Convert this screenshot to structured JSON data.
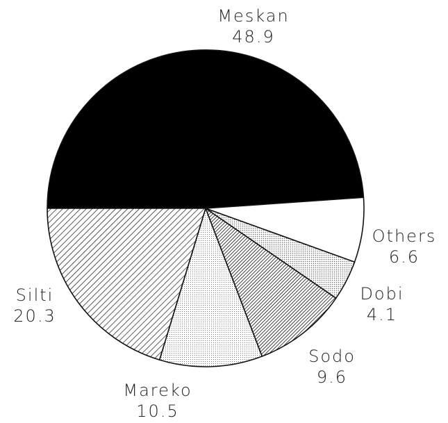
{
  "chart_data": {
    "type": "pie",
    "title": "",
    "slices": [
      {
        "label": "Meskan",
        "value": 48.9,
        "value_text": "48.9",
        "fill": "solid-black"
      },
      {
        "label": "Others",
        "value": 6.6,
        "value_text": "6.6",
        "fill": "white"
      },
      {
        "label": "Dobi",
        "value": 4.1,
        "value_text": "4.1",
        "fill": "light-dotted"
      },
      {
        "label": "Sodo",
        "value": 9.6,
        "value_text": "9.6",
        "fill": "dense-diagonal-hatch"
      },
      {
        "label": "Mareko",
        "value": 10.5,
        "value_text": "10.5",
        "fill": "fine-dotted"
      },
      {
        "label": "Silti",
        "value": 20.3,
        "value_text": "20.3",
        "fill": "diagonal-hatch"
      }
    ],
    "start_direction": "clockwise from left (9 o'clock)",
    "legend": "none"
  },
  "colors": {
    "outline": "#111111",
    "black_fill": "#000000",
    "background": "#ffffff",
    "text": "#222222"
  }
}
